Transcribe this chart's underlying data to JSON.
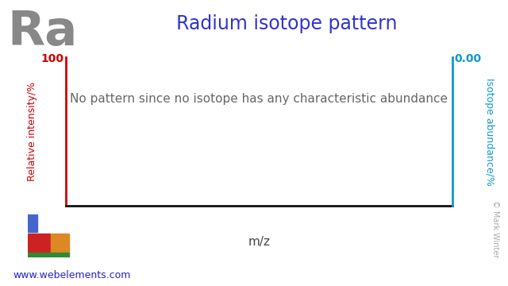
{
  "title": "Radium isotope pattern",
  "title_color": "#3333cc",
  "title_fontsize": 17,
  "element_symbol": "Ra",
  "element_color": "#888888",
  "element_fontsize": 44,
  "left_ylabel": "Relative intensity/%",
  "left_ylabel_color": "#cc0000",
  "right_ylabel": "Isotope abundance/%",
  "right_ylabel_color": "#1199cc",
  "xlabel": "m/z",
  "xlabel_color": "#444444",
  "xlabel_fontsize": 11,
  "annotation_text": "No pattern since no isotope has any characteristic abundance",
  "annotation_color": "#666666",
  "annotation_fontsize": 11,
  "left_ytick_top": "100",
  "right_ytick_top": "0.00",
  "left_axis_color": "#cc0000",
  "right_axis_color": "#1199cc",
  "bottom_axis_color": "#111111",
  "website_text": "www.webelements.com",
  "website_color": "#2222cc",
  "website_fontsize": 9,
  "copyright_text": "© Mark Winter",
  "copyright_color": "#aaaaaa",
  "copyright_fontsize": 7,
  "background_color": "#ffffff",
  "plot_bg_color": "#ffffff",
  "periodic_table_colors": {
    "blue_bar": "#4466cc",
    "red_bar": "#cc2222",
    "orange_bar": "#dd8822",
    "green_bar": "#338833"
  }
}
